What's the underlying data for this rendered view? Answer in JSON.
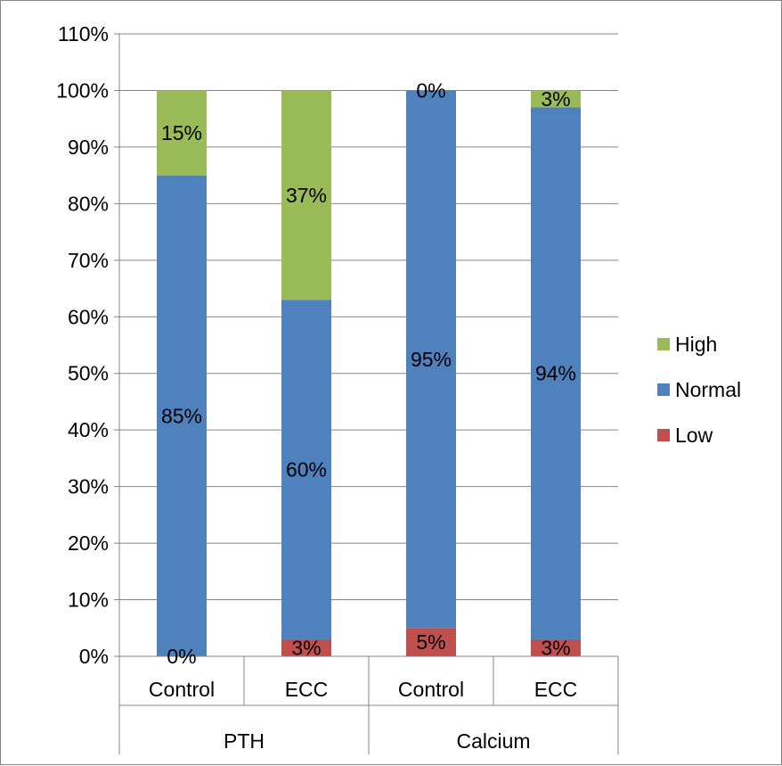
{
  "chart_data": {
    "type": "bar",
    "stacked": true,
    "categories": [
      "Control",
      "ECC",
      "Control",
      "ECC"
    ],
    "groups": [
      {
        "label": "PTH",
        "categories": [
          "Control",
          "ECC"
        ]
      },
      {
        "label": "Calcium",
        "categories": [
          "Control",
          "ECC"
        ]
      }
    ],
    "series": [
      {
        "name": "Low",
        "color": "#C0504D",
        "values": [
          0,
          3,
          5,
          3
        ],
        "labels": [
          "0%",
          "3%",
          "5%",
          "3%"
        ]
      },
      {
        "name": "Normal",
        "color": "#4F81BD",
        "values": [
          85,
          60,
          95,
          94
        ],
        "labels": [
          "85%",
          "60%",
          "95%",
          "94%"
        ]
      },
      {
        "name": "High",
        "color": "#9BBB59",
        "values": [
          15,
          37,
          0,
          3
        ],
        "labels": [
          "15%",
          "37%",
          "0%",
          "3%"
        ]
      }
    ],
    "ylim": [
      0,
      110
    ],
    "yticks": [
      0,
      10,
      20,
      30,
      40,
      50,
      60,
      70,
      80,
      90,
      100,
      110
    ],
    "ytick_labels": [
      "0%",
      "10%",
      "20%",
      "30%",
      "40%",
      "50%",
      "60%",
      "70%",
      "80%",
      "90%",
      "100%",
      "110%"
    ],
    "grid": true,
    "legend": {
      "position": "right",
      "entries": [
        "High",
        "Normal",
        "Low"
      ]
    },
    "title": "",
    "xlabel": "",
    "ylabel": ""
  }
}
